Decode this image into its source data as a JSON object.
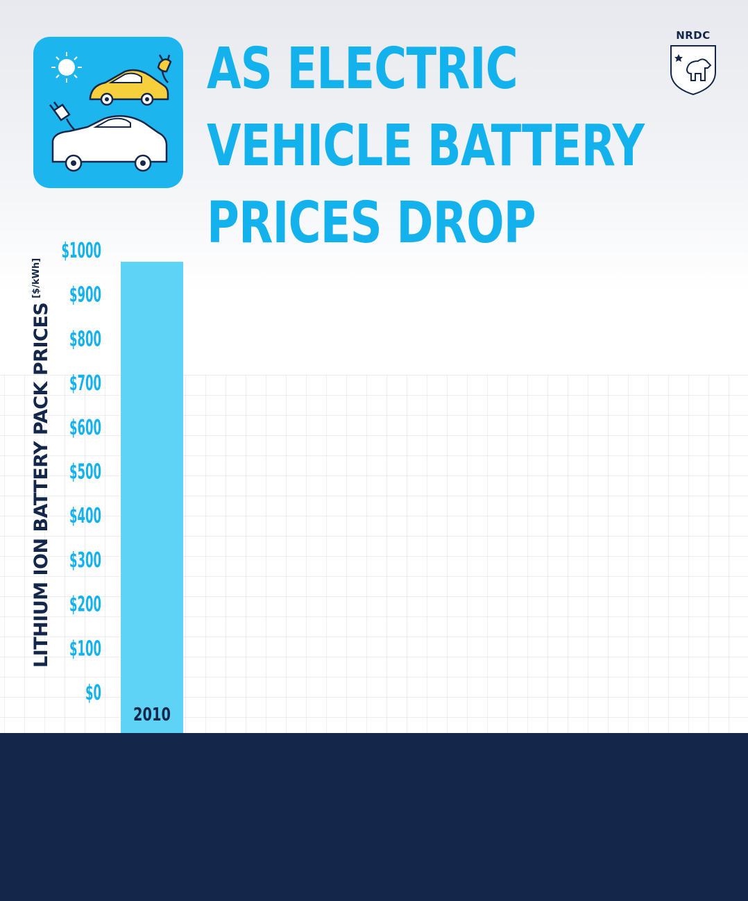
{
  "header": {
    "title_lines": [
      "AS ELECTRIC",
      "VEHICLE BATTERY",
      "PRICES DROP"
    ],
    "logo_text": "NRDC",
    "app_icon": "electric-cars-charging-icon"
  },
  "colors": {
    "title": "#14b2ec",
    "bar": "#5fd3f6",
    "tick_labels": "#14b2ec",
    "dark_navy": "#14274a",
    "icon_bg": "#1db5ee",
    "yellow_car": "#f5cf3c"
  },
  "chart_data": {
    "type": "bar",
    "categories": [
      "2010"
    ],
    "values": [
      970
    ],
    "ylabel": "LITHIUM ION BATTERY PACK PRICES",
    "yunit": "[$/kWh]",
    "ylim": [
      0,
      1000
    ],
    "yticks": [
      0,
      100,
      200,
      300,
      400,
      500,
      600,
      700,
      800,
      900,
      1000
    ],
    "ytick_labels": [
      "$0",
      "$100",
      "$200",
      "$300",
      "$400",
      "$500",
      "$600",
      "$700",
      "$800",
      "$900",
      "$1000"
    ],
    "grid": true,
    "legend": "none"
  }
}
